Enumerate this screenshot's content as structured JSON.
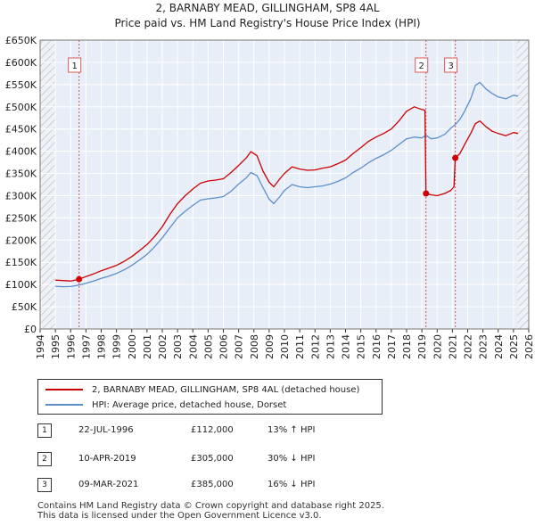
{
  "title": "2, BARNABY MEAD, GILLINGHAM, SP8 4AL",
  "subtitle": "Price paid vs. HM Land Registry's House Price Index (HPI)",
  "chart_data": {
    "type": "line",
    "xlim": [
      1994,
      2026
    ],
    "ylim": [
      0,
      650000
    ],
    "x_ticks": [
      "1994",
      "1995",
      "1996",
      "1997",
      "1998",
      "1999",
      "2000",
      "2001",
      "2002",
      "2003",
      "2004",
      "2005",
      "2006",
      "2007",
      "2008",
      "2009",
      "2010",
      "2011",
      "2012",
      "2013",
      "2014",
      "2015",
      "2016",
      "2017",
      "2018",
      "2019",
      "2020",
      "2021",
      "2022",
      "2023",
      "2024",
      "2025",
      "2026"
    ],
    "y_ticks": [
      {
        "value": 0,
        "label": "£0"
      },
      {
        "value": 50000,
        "label": "£50K"
      },
      {
        "value": 100000,
        "label": "£100K"
      },
      {
        "value": 150000,
        "label": "£150K"
      },
      {
        "value": 200000,
        "label": "£200K"
      },
      {
        "value": 250000,
        "label": "£250K"
      },
      {
        "value": 300000,
        "label": "£300K"
      },
      {
        "value": 350000,
        "label": "£350K"
      },
      {
        "value": 400000,
        "label": "£400K"
      },
      {
        "value": 450000,
        "label": "£450K"
      },
      {
        "value": 500000,
        "label": "£500K"
      },
      {
        "value": 550000,
        "label": "£550K"
      },
      {
        "value": 600000,
        "label": "£600K"
      },
      {
        "value": 650000,
        "label": "£650K"
      }
    ],
    "hatch_before": 1995.0,
    "hatch_after": 2025.25,
    "series": [
      {
        "name": "2, BARNABY MEAD, GILLINGHAM, SP8 4AL (detached house)",
        "color": "#cc0000",
        "points": [
          [
            1995.0,
            110000
          ],
          [
            1995.5,
            109000
          ],
          [
            1996.0,
            108000
          ],
          [
            1996.55,
            112000
          ],
          [
            1997.0,
            118000
          ],
          [
            1997.5,
            124000
          ],
          [
            1998.0,
            131000
          ],
          [
            1998.5,
            137000
          ],
          [
            1999.0,
            143000
          ],
          [
            1999.5,
            152000
          ],
          [
            2000.0,
            163000
          ],
          [
            2000.5,
            176000
          ],
          [
            2001.0,
            190000
          ],
          [
            2001.5,
            208000
          ],
          [
            2002.0,
            230000
          ],
          [
            2002.5,
            258000
          ],
          [
            2003.0,
            282000
          ],
          [
            2003.5,
            300000
          ],
          [
            2004.0,
            315000
          ],
          [
            2004.5,
            328000
          ],
          [
            2005.0,
            333000
          ],
          [
            2005.5,
            335000
          ],
          [
            2006.0,
            338000
          ],
          [
            2006.5,
            352000
          ],
          [
            2007.0,
            368000
          ],
          [
            2007.5,
            385000
          ],
          [
            2007.8,
            399000
          ],
          [
            2008.2,
            390000
          ],
          [
            2008.6,
            355000
          ],
          [
            2009.0,
            330000
          ],
          [
            2009.3,
            320000
          ],
          [
            2009.7,
            338000
          ],
          [
            2010.0,
            350000
          ],
          [
            2010.5,
            365000
          ],
          [
            2011.0,
            360000
          ],
          [
            2011.5,
            357000
          ],
          [
            2012.0,
            358000
          ],
          [
            2012.5,
            362000
          ],
          [
            2013.0,
            365000
          ],
          [
            2013.5,
            372000
          ],
          [
            2014.0,
            380000
          ],
          [
            2014.5,
            395000
          ],
          [
            2015.0,
            408000
          ],
          [
            2015.5,
            422000
          ],
          [
            2016.0,
            432000
          ],
          [
            2016.5,
            440000
          ],
          [
            2017.0,
            450000
          ],
          [
            2017.5,
            468000
          ],
          [
            2018.0,
            490000
          ],
          [
            2018.5,
            500000
          ],
          [
            2018.9,
            495000
          ],
          [
            2019.2,
            492000
          ],
          [
            2019.27,
            305000
          ],
          [
            2019.6,
            302000
          ],
          [
            2020.0,
            300000
          ],
          [
            2020.5,
            305000
          ],
          [
            2020.9,
            312000
          ],
          [
            2021.1,
            320000
          ],
          [
            2021.19,
            385000
          ],
          [
            2021.5,
            395000
          ],
          [
            2021.8,
            415000
          ],
          [
            2022.2,
            440000
          ],
          [
            2022.5,
            462000
          ],
          [
            2022.8,
            468000
          ],
          [
            2023.2,
            455000
          ],
          [
            2023.6,
            445000
          ],
          [
            2024.0,
            440000
          ],
          [
            2024.5,
            435000
          ],
          [
            2025.0,
            442000
          ],
          [
            2025.3,
            440000
          ]
        ]
      },
      {
        "name": "HPI: Average price, detached house, Dorset",
        "color": "#5b8fcc",
        "points": [
          [
            1995.0,
            96000
          ],
          [
            1995.5,
            95000
          ],
          [
            1996.0,
            95500
          ],
          [
            1996.55,
            99000
          ],
          [
            1997.0,
            103000
          ],
          [
            1997.5,
            108000
          ],
          [
            1998.0,
            114000
          ],
          [
            1998.5,
            119000
          ],
          [
            1999.0,
            125000
          ],
          [
            1999.5,
            133000
          ],
          [
            2000.0,
            143000
          ],
          [
            2000.5,
            155000
          ],
          [
            2001.0,
            168000
          ],
          [
            2001.5,
            185000
          ],
          [
            2002.0,
            205000
          ],
          [
            2002.5,
            228000
          ],
          [
            2003.0,
            250000
          ],
          [
            2003.5,
            265000
          ],
          [
            2004.0,
            278000
          ],
          [
            2004.5,
            290000
          ],
          [
            2005.0,
            293000
          ],
          [
            2005.5,
            295000
          ],
          [
            2006.0,
            298000
          ],
          [
            2006.5,
            310000
          ],
          [
            2007.0,
            326000
          ],
          [
            2007.5,
            340000
          ],
          [
            2007.8,
            352000
          ],
          [
            2008.2,
            345000
          ],
          [
            2008.6,
            318000
          ],
          [
            2009.0,
            292000
          ],
          [
            2009.3,
            282000
          ],
          [
            2009.7,
            298000
          ],
          [
            2010.0,
            312000
          ],
          [
            2010.5,
            325000
          ],
          [
            2011.0,
            320000
          ],
          [
            2011.5,
            318000
          ],
          [
            2012.0,
            320000
          ],
          [
            2012.5,
            322000
          ],
          [
            2013.0,
            326000
          ],
          [
            2013.5,
            332000
          ],
          [
            2014.0,
            340000
          ],
          [
            2014.5,
            352000
          ],
          [
            2015.0,
            362000
          ],
          [
            2015.5,
            374000
          ],
          [
            2016.0,
            384000
          ],
          [
            2016.5,
            392000
          ],
          [
            2017.0,
            402000
          ],
          [
            2017.5,
            415000
          ],
          [
            2018.0,
            428000
          ],
          [
            2018.5,
            432000
          ],
          [
            2019.0,
            430000
          ],
          [
            2019.27,
            436000
          ],
          [
            2019.6,
            428000
          ],
          [
            2020.0,
            430000
          ],
          [
            2020.5,
            438000
          ],
          [
            2020.9,
            452000
          ],
          [
            2021.19,
            460000
          ],
          [
            2021.5,
            472000
          ],
          [
            2021.8,
            490000
          ],
          [
            2022.2,
            518000
          ],
          [
            2022.5,
            548000
          ],
          [
            2022.8,
            555000
          ],
          [
            2023.2,
            540000
          ],
          [
            2023.6,
            530000
          ],
          [
            2024.0,
            522000
          ],
          [
            2024.5,
            518000
          ],
          [
            2025.0,
            526000
          ],
          [
            2025.3,
            524000
          ]
        ]
      }
    ],
    "sales": [
      {
        "label": "1",
        "x": 1996.55,
        "price": 112000
      },
      {
        "label": "2",
        "x": 2019.27,
        "price": 305000
      },
      {
        "label": "3",
        "x": 2021.19,
        "price": 385000
      }
    ]
  },
  "legend": {
    "property": "2, BARNABY MEAD, GILLINGHAM, SP8 4AL (detached house)",
    "hpi": "HPI: Average price, detached house, Dorset"
  },
  "transactions": [
    {
      "num": "1",
      "date": "22-JUL-1996",
      "price": "£112,000",
      "hpi": "13% ↑ HPI"
    },
    {
      "num": "2",
      "date": "10-APR-2019",
      "price": "£305,000",
      "hpi": "30% ↓ HPI"
    },
    {
      "num": "3",
      "date": "09-MAR-2021",
      "price": "£385,000",
      "hpi": "16% ↓ HPI"
    }
  ],
  "footer": {
    "line1": "Contains HM Land Registry data © Crown copyright and database right 2025.",
    "line2": "This data is licensed under the Open Government Licence v3.0."
  },
  "colors": {
    "property": "#cc0000",
    "hpi": "#5b8fcc",
    "plot_bg": "#e8eef8",
    "grid": "#ffffff",
    "hatch": "#c9cfd8"
  }
}
